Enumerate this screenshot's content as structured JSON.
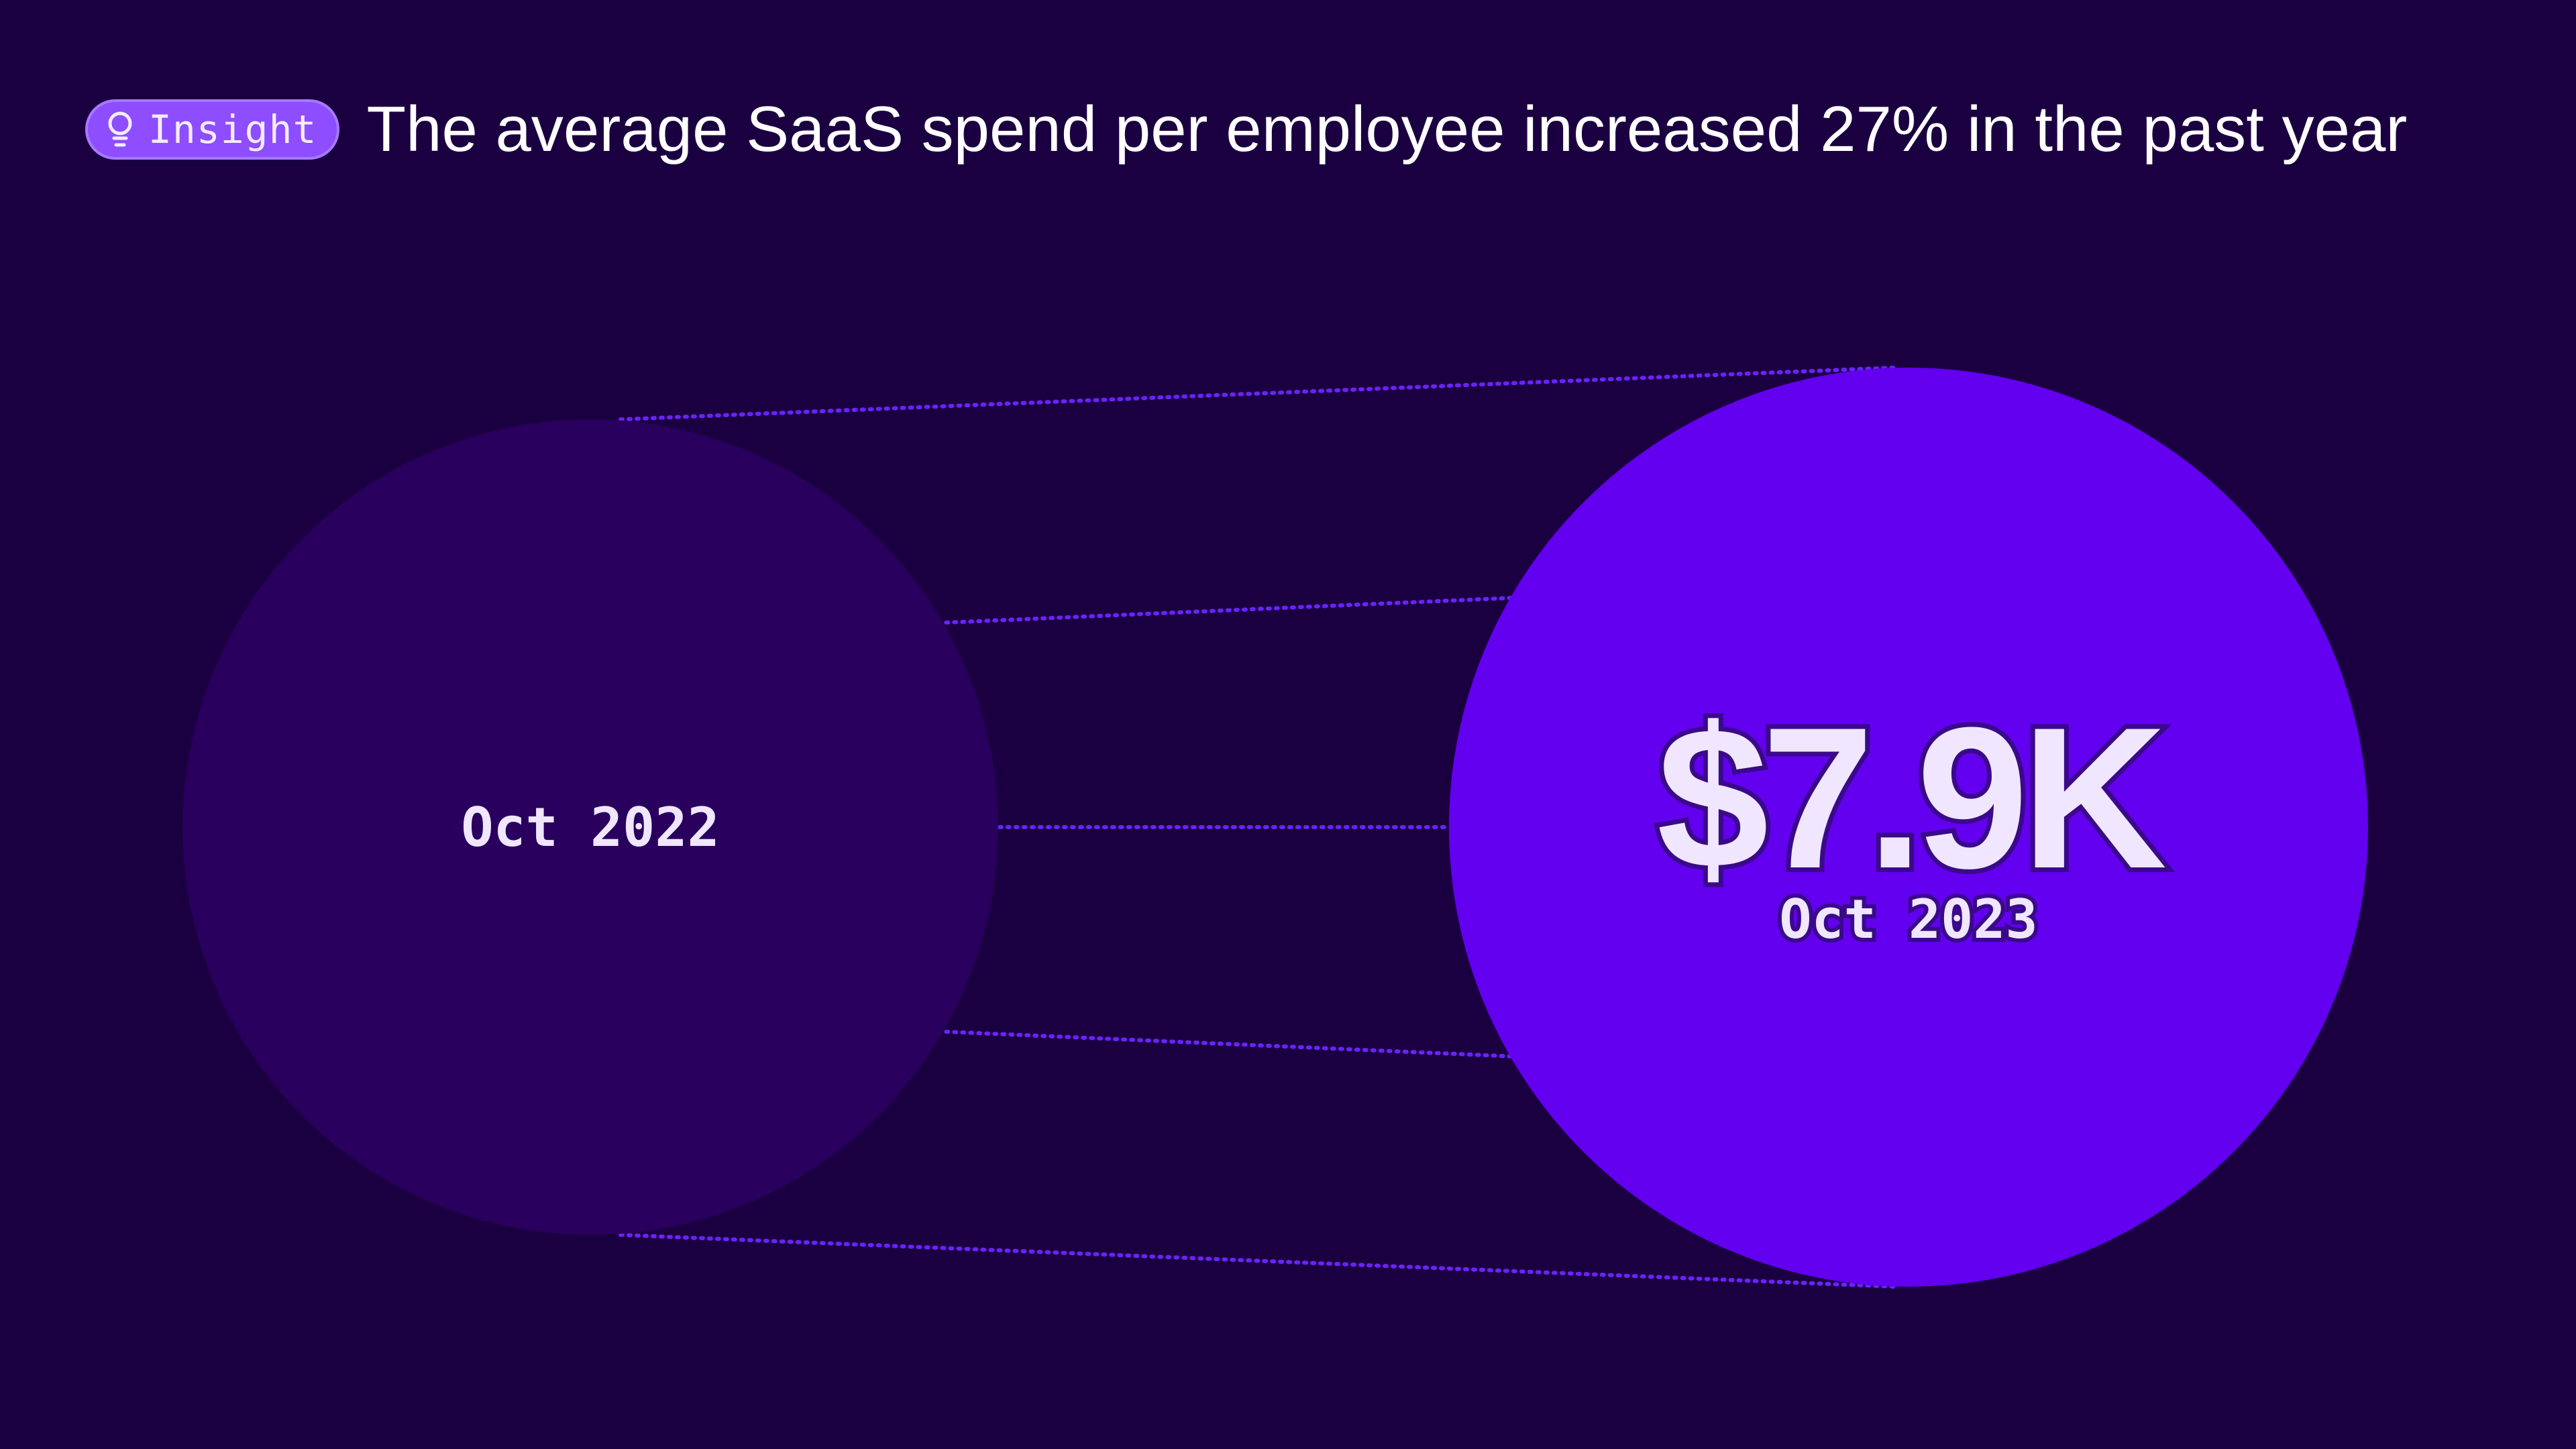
{
  "header": {
    "badge_label": "Insight",
    "badge_icon": "lightbulb-icon",
    "title": "The average SaaS spend per employee increased 27% in the past year"
  },
  "colors": {
    "background": "#1b0041",
    "circle_previous": "#29005d",
    "circle_current": "#6200ef",
    "connector": "#6a22ff",
    "badge": "#8e4dff",
    "text": "#f0e6ff"
  },
  "chart_data": {
    "type": "bubble-comparison",
    "change_label": "27%",
    "points": [
      {
        "label": "Oct 2022",
        "value": 6.22,
        "value_label": ""
      },
      {
        "label": "Oct 2023",
        "value": 7.9,
        "value_label": "$7.9K"
      }
    ]
  }
}
